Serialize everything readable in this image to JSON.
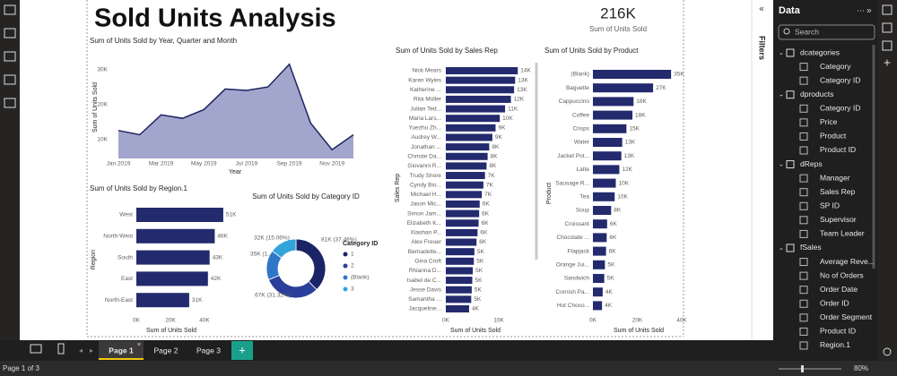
{
  "report": {
    "title": "Sold Units Analysis",
    "card": {
      "value": "216K",
      "label": "Sum of Units Sold"
    },
    "charts": [
      {
        "type": "area",
        "title": "Sum of Units Sold by Year, Quarter and Month",
        "x_label": "Year",
        "y_label": "Sum of Units Sold",
        "categories": [
          "Jan 2019",
          null,
          "Mar 2019",
          null,
          "May 2019",
          null,
          "Jul 2019",
          null,
          "Sep 2019",
          null,
          "Nov 2019",
          null
        ],
        "values": [
          12500,
          11300,
          17000,
          16000,
          18500,
          24400,
          24000,
          25000,
          31500,
          14600,
          7000,
          11300
        ],
        "ylim": [
          4500,
          34000
        ],
        "yticks": [
          {
            "value": 10000,
            "label": "10K"
          },
          {
            "value": 20000,
            "label": "20K"
          },
          {
            "value": 30000,
            "label": "30K"
          }
        ],
        "color": "#a3a6cc",
        "line_color": "#1d2361"
      },
      {
        "type": "hbar",
        "title": "Sum of Units Sold by Region.1",
        "x_label": "Sum of Units Sold",
        "y_label": "Region",
        "categories": [
          "West",
          "North-West",
          "South",
          "East",
          "North-East"
        ],
        "values": [
          51000,
          46000,
          43000,
          42000,
          31000
        ],
        "value_labels": [
          "51K",
          "46K",
          "43K",
          "42K",
          "31K"
        ],
        "xlim": [
          0,
          60000
        ],
        "xticks": [
          {
            "value": 0,
            "label": "0K"
          },
          {
            "value": 20000,
            "label": "20K"
          },
          {
            "value": 40000,
            "label": "40K"
          }
        ],
        "color": "#232a6e"
      },
      {
        "type": "donut",
        "title": "Sum of Units Sold by Category ID",
        "legend_title": "Category ID",
        "categories": [
          "1",
          "2",
          "(Blank)",
          "3"
        ],
        "values": [
          81000,
          67000,
          35000,
          32000
        ],
        "value_labels": [
          "81K (37.46%)",
          "67K (31.32%)",
          "35K (1...",
          "32K (15.06%)"
        ],
        "colors": [
          "#1b2466",
          "#2a3f9a",
          "#2f76c9",
          "#33a4d9"
        ]
      },
      {
        "type": "hbar",
        "title": "Sum of Units Sold by Sales Rep",
        "x_label": "Sum of Units Sold",
        "y_label": "Sales Rep",
        "categories": [
          "Nick Mears",
          "Karen Wyles",
          "Katherine ...",
          "Rita Müller",
          "Julian Ted...",
          "Maria Lars...",
          "Yuezhu Zh...",
          "Audrey W...",
          "Jonathan ...",
          "Christie Da...",
          "Giovanni R...",
          "Trudy Shore",
          "Cyndy Bio...",
          "Michael H...",
          "Jason Mic...",
          "Simon Jam...",
          "Elizabeth K...",
          "Xiaohan P...",
          "Alex Freuer",
          "Bernadette...",
          "Gina Croft",
          "Rhianna D...",
          "Isabel de C...",
          "Jesse Davis",
          "Samantha ...",
          "Jacqueline..."
        ],
        "values": [
          13600,
          13100,
          12900,
          12300,
          11200,
          10200,
          9400,
          8800,
          8200,
          7900,
          7700,
          7400,
          7100,
          6800,
          6400,
          6300,
          6200,
          6000,
          5800,
          5400,
          5300,
          5100,
          5000,
          4900,
          4800,
          4400
        ],
        "value_labels": [
          "14K",
          "13K",
          "13K",
          "12K",
          "11K",
          "10K",
          "9K",
          "9K",
          "8K",
          "8K",
          "8K",
          "7K",
          "7K",
          "7K",
          "6K",
          "6K",
          "6K",
          "6K",
          "6K",
          "5K",
          "5K",
          "5K",
          "5K",
          "5K",
          "5K",
          "4K"
        ],
        "xlim": [
          0,
          16000
        ],
        "xticks": [
          {
            "value": 0,
            "label": "0K"
          },
          {
            "value": 10000,
            "label": "10K"
          }
        ],
        "color": "#232a6e"
      },
      {
        "type": "hbar",
        "title": "Sum of Units Sold by Product",
        "x_label": "Sum of Units Sold",
        "y_label": "Product",
        "categories": [
          "(Blank)",
          "Baguette",
          "Cappuccino",
          "Coffee",
          "Crisps",
          "Water",
          "Jacket Pot...",
          "Latte",
          "Sausage R...",
          "Tea",
          "Soup",
          "Croissant",
          "Chocolate ...",
          "Flapjack",
          "Orange Jui...",
          "Sandwich",
          "Cornish Pa...",
          "Hot Choco..."
        ],
        "values": [
          35200,
          27100,
          18300,
          17800,
          15100,
          13200,
          12800,
          11900,
          10300,
          9800,
          8200,
          6400,
          6200,
          5900,
          5400,
          5100,
          4400,
          4100
        ],
        "value_labels": [
          "35K",
          "27K",
          "18K",
          "18K",
          "15K",
          "13K",
          "13K",
          "12K",
          "10K",
          "10K",
          "8K",
          "6K",
          "6K",
          "6K",
          "5K",
          "5K",
          "4K",
          "4K"
        ],
        "xlim": [
          0,
          40000
        ],
        "xticks": [
          {
            "value": 0,
            "label": "0K"
          },
          {
            "value": 20000,
            "label": "20K"
          },
          {
            "value": 40000,
            "label": "40K"
          }
        ],
        "color": "#232a6e"
      }
    ]
  },
  "filters_label": "Filters",
  "data_pane": {
    "title": "Data",
    "search": "Search",
    "tables": [
      {
        "name": "dcategories",
        "fields": [
          "Category",
          "Category ID"
        ]
      },
      {
        "name": "dproducts",
        "fields": [
          "Category ID",
          "Price",
          "Product",
          "Product ID"
        ]
      },
      {
        "name": "dReps",
        "fields": [
          "Manager",
          "Sales Rep",
          "SP ID",
          "Supervisor",
          "Team Leader"
        ]
      },
      {
        "name": "fSales",
        "fields": [
          "Average Reve...",
          "No of Orders",
          "Order Date",
          "Order ID",
          "Order Segment",
          "Product ID",
          "Region.1"
        ]
      }
    ]
  },
  "pages": [
    "Page 1",
    "Page 2",
    "Page 3"
  ],
  "status": {
    "page": "Page 1 of 3",
    "zoom": "80%"
  }
}
